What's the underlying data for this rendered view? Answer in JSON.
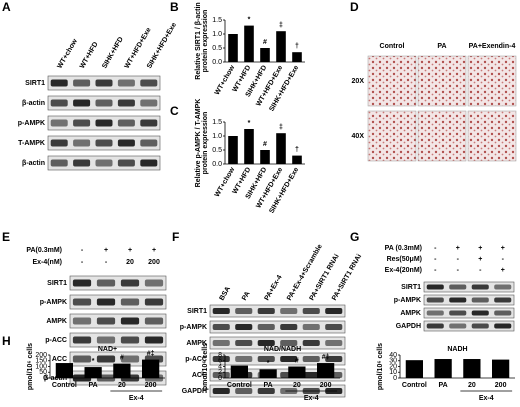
{
  "panel_labels": [
    "A",
    "B",
    "C",
    "D",
    "E",
    "F",
    "G",
    "H"
  ],
  "panel_a": {
    "lanes": [
      "WT+chow",
      "WT+HFD",
      "SIHK+HFD",
      "WT+HFD+Exe",
      "SIHK+HFD+Exe"
    ],
    "rows": [
      "SIRT1",
      "β-actin",
      "p-AMPK",
      "T-AMPK",
      "β-actin"
    ]
  },
  "panel_d": {
    "columns": [
      "Control",
      "PA",
      "PA+Exendin-4"
    ],
    "rows": [
      "20X",
      "40X"
    ]
  },
  "panel_e": {
    "conditions": [
      {
        "name": "PA(0.3mM)",
        "lanes": [
          "-",
          "+",
          "+",
          "+"
        ]
      },
      {
        "name": "Ex-4(nM)",
        "lanes": [
          "-",
          "-",
          "20",
          "200"
        ]
      }
    ],
    "rows": [
      "SIRT1",
      "p-AMPK",
      "AMPK",
      "p-ACC",
      "ACC",
      "β-actin"
    ]
  },
  "panel_f": {
    "lanes": [
      "BSA",
      "PA",
      "PA+Ex-4",
      "PA+Ex-4+Scramble",
      "PA+SIRT1 RNAi",
      "PA+SIRT1 RNAi"
    ],
    "rows": [
      "SIRT1",
      "p-AMPK",
      "AMPK",
      "p-ACC",
      "ACC",
      "GAPDH"
    ]
  },
  "panel_g": {
    "conditions": [
      {
        "name": "PA (0.3mM)",
        "lanes": [
          "-",
          "+",
          "+",
          "+"
        ]
      },
      {
        "name": "Res(50μM)",
        "lanes": [
          "-",
          "-",
          "+",
          "-"
        ]
      },
      {
        "name": "Ex-4(20nM)",
        "lanes": [
          "-",
          "-",
          "-",
          "+"
        ]
      }
    ],
    "rows": [
      "SIRT1",
      "p-AMPK",
      "AMPK",
      "GAPDH"
    ]
  },
  "chart_data": [
    {
      "type": "bar",
      "ylabel": [
        "Relative SIRT1 / β-actin",
        "protein expression"
      ],
      "categories": [
        "WT+chow",
        "WT+HFD",
        "SIHK+HFD",
        "WT+HFD+Exe",
        "SIHK+HFD+Exe"
      ],
      "values": [
        1.0,
        1.3,
        0.5,
        1.1,
        0.35
      ],
      "color": "#000000",
      "ylim": [
        0,
        1.5
      ],
      "yticks": [
        {
          "value": 0,
          "label": "0.0"
        },
        {
          "value": 0.5,
          "label": "0.5"
        },
        {
          "value": 1,
          "label": "1.0"
        },
        {
          "value": 1.5,
          "label": "1.5"
        }
      ],
      "annotations": [
        {
          "text": "*",
          "x": "WT+HFD"
        },
        {
          "text": "#",
          "x": "SIHK+HFD"
        },
        {
          "text": "‡",
          "x": "WT+HFD+Exe"
        },
        {
          "text": "†",
          "x": "SIHK+HFD+Exe"
        }
      ]
    },
    {
      "type": "bar",
      "ylabel": [
        "Relative p-AMPK / T-AMPK",
        "protein expression"
      ],
      "categories": [
        "WT+chow",
        "WT+HFD",
        "SIHK+HFD",
        "WT+HFD+Exe",
        "SIHK+HFD+Exe"
      ],
      "values": [
        1.0,
        1.25,
        0.5,
        1.1,
        0.3
      ],
      "color": "#000000",
      "ylim": [
        0,
        1.5
      ],
      "yticks": [
        {
          "value": 0,
          "label": "0.0"
        },
        {
          "value": 0.5,
          "label": "0.5"
        },
        {
          "value": 1,
          "label": "1.0"
        },
        {
          "value": 1.5,
          "label": "1.5"
        }
      ],
      "annotations": [
        {
          "text": "*",
          "x": "WT+HFD"
        },
        {
          "text": "#",
          "x": "SIHK+HFD"
        },
        {
          "text": "‡",
          "x": "WT+HFD+Exe"
        },
        {
          "text": "†",
          "x": "SIHK+HFD+Exe"
        }
      ]
    },
    {
      "type": "bar",
      "title": "NAD+",
      "ylabel": [
        "pmol/10⁶ cells"
      ],
      "categories": [
        "Control",
        "PA",
        "20",
        "200"
      ],
      "values": [
        130,
        95,
        125,
        160
      ],
      "color": "#000000",
      "ylim": [
        0,
        200
      ],
      "yticks": [
        0,
        50,
        100,
        150,
        200
      ],
      "annotations": [
        {
          "text": "*",
          "x": "PA"
        },
        {
          "text": "#",
          "x": "20"
        },
        {
          "text": "#‡",
          "x": "200"
        }
      ],
      "group_label": {
        "text": "Ex-4",
        "categories": [
          "20",
          "200"
        ]
      }
    },
    {
      "type": "bar",
      "title": "NAD/NADH",
      "ylabel": [
        "pmol/10⁶ cells"
      ],
      "categories": [
        "Control",
        "PA",
        "20",
        "200"
      ],
      "values": [
        4.3,
        3.0,
        4.0,
        5.2
      ],
      "color": "#000000",
      "ylim": [
        0,
        8
      ],
      "yticks": [
        0,
        2,
        4,
        6,
        8
      ],
      "annotations": [
        {
          "text": "*",
          "x": "PA"
        },
        {
          "text": "#",
          "x": "20"
        },
        {
          "text": "#‡",
          "x": "200"
        }
      ],
      "group_label": {
        "text": "Ex-4",
        "categories": [
          "20",
          "200"
        ]
      }
    },
    {
      "type": "bar",
      "title": "NADH",
      "ylabel": [
        "pmol/10⁶ cells"
      ],
      "categories": [
        "Control",
        "PA",
        "20",
        "200"
      ],
      "values": [
        31,
        33,
        33,
        32
      ],
      "color": "#000000",
      "ylim": [
        0,
        40
      ],
      "yticks": [
        0,
        10,
        20,
        30,
        40
      ],
      "group_label": {
        "text": "Ex-4",
        "categories": [
          "20",
          "200"
        ]
      }
    }
  ]
}
